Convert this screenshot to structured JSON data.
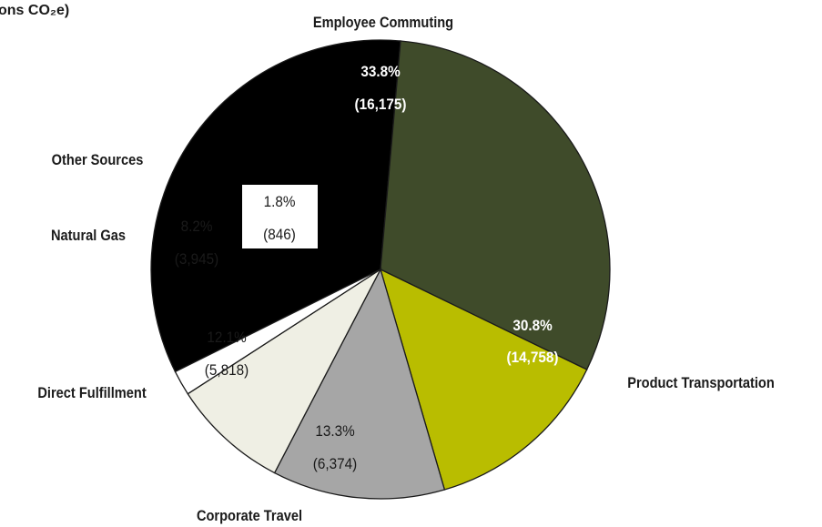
{
  "title_fragment": "ons CO₂e)",
  "chart_data": {
    "type": "pie",
    "title": "",
    "slices": [
      {
        "label": "Employee Commuting",
        "percent": "33.8%",
        "value": 16175,
        "value_text": "(16,175)",
        "color": "#000000",
        "text_color": "#ffffff"
      },
      {
        "label": "Product Transportation",
        "percent": "30.8%",
        "value": 14758,
        "value_text": "(14,758)",
        "color": "#3f4b2a",
        "text_color": "#ffffff"
      },
      {
        "label": "Corporate Travel",
        "percent": "13.3%",
        "value": 6374,
        "value_text": "(6,374)",
        "color": "#b9bd00",
        "text_color": "#1a1a1a"
      },
      {
        "label": "Direct Fulfillment",
        "percent": "12.1%",
        "value": 5818,
        "value_text": "(5,818)",
        "color": "#a6a6a6",
        "text_color": "#1a1a1a"
      },
      {
        "label": "Natural Gas",
        "percent": "8.2%",
        "value": 3945,
        "value_text": "(3,945)",
        "color": "#efefe4",
        "text_color": "#1a1a1a"
      },
      {
        "label": "Other Sources",
        "percent": "1.8%",
        "value": 846,
        "value_text": "(846)",
        "color": "#ffffff",
        "text_color": "#1a1a1a"
      }
    ]
  }
}
